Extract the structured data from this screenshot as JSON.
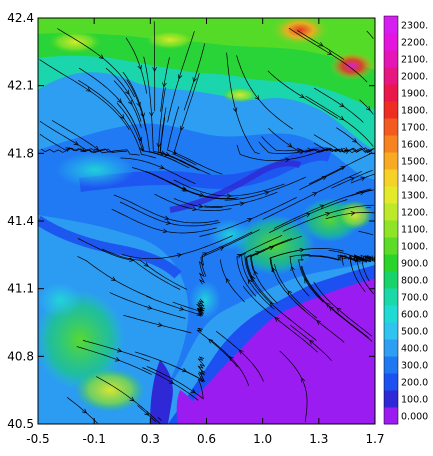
{
  "map": {
    "x_ticks": [
      "-0.5",
      "-0.1",
      "0.3",
      "0.6",
      "1.0",
      "1.3",
      "1.7"
    ],
    "y_ticks": [
      "40.5",
      "40.8",
      "41.1",
      "41.4",
      "41.8",
      "42.1",
      "42.4"
    ],
    "colors": {
      "sea": "#9b1cf0",
      "streamline": "#000000",
      "frame": "#000000"
    }
  },
  "legend": {
    "labels": [
      "0.000",
      "100.0",
      "200.0",
      "300.0",
      "400.0",
      "500.0",
      "600.0",
      "700.0",
      "800.0",
      "900.0",
      "1000.",
      "1100.",
      "1200.",
      "1300.",
      "1400.",
      "1500.",
      "1600.",
      "1700.",
      "1800.",
      "1900.",
      "2000.",
      "2100.",
      "2200.",
      "2300."
    ],
    "colors": [
      "#9b1cf0",
      "#2f28d6",
      "#1d50f0",
      "#1f78f2",
      "#2e9ef2",
      "#2fc4f0",
      "#1fdbd4",
      "#1ad8a8",
      "#18d36a",
      "#2bd42b",
      "#5cdc26",
      "#8ee426",
      "#bcea2a",
      "#e2ea2a",
      "#f6d128",
      "#f7aa22",
      "#f68320",
      "#f35a1f",
      "#ee2e23",
      "#e9174a",
      "#e81681",
      "#e516b6",
      "#e315df",
      "#d51ef0"
    ]
  }
}
